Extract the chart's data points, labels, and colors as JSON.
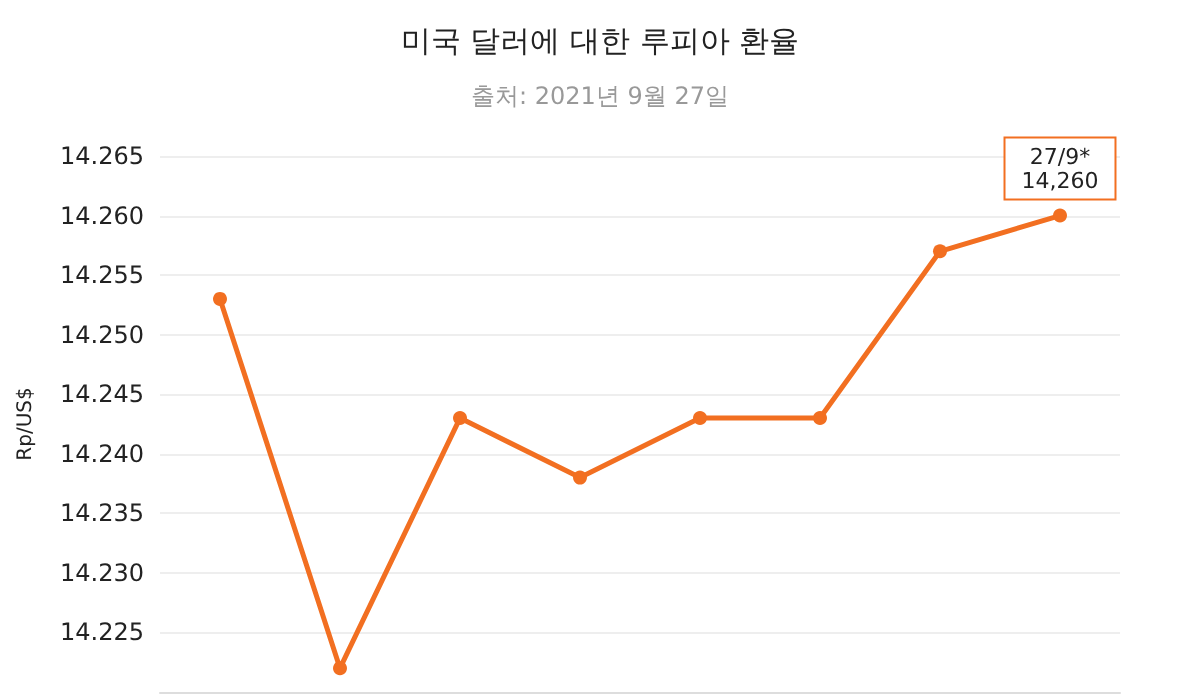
{
  "chart_data": {
    "type": "line",
    "title": "미국 달러에 대한 루피아 환율",
    "subtitle": "출처: 2021년 9월 27일",
    "ylabel": "Rp/US$",
    "categories": [
      null,
      null,
      null,
      null,
      null,
      null,
      null,
      null
    ],
    "series": [
      {
        "color": "#f26f21",
        "values": [
          14.253,
          14.222,
          14.243,
          14.238,
          14.243,
          14.243,
          14.257,
          14.26
        ]
      }
    ],
    "ylim": [
      14.22,
      14.265
    ],
    "yticks": [
      {
        "value": 14.225,
        "label": "14.225"
      },
      {
        "value": 14.23,
        "label": "14.230"
      },
      {
        "value": 14.235,
        "label": "14.235"
      },
      {
        "value": 14.24,
        "label": "14.240"
      },
      {
        "value": 14.245,
        "label": "14.245"
      },
      {
        "value": 14.25,
        "label": "14.250"
      },
      {
        "value": 14.255,
        "label": "14.255"
      },
      {
        "value": 14.26,
        "label": "14.260"
      },
      {
        "value": 14.265,
        "label": "14.265"
      }
    ],
    "annotations": [
      {
        "text": "27/9*\n14,260",
        "y": 14.26
      }
    ],
    "grid": "y",
    "marker": "circle",
    "line_style": "solid",
    "tick_labels": "y"
  }
}
